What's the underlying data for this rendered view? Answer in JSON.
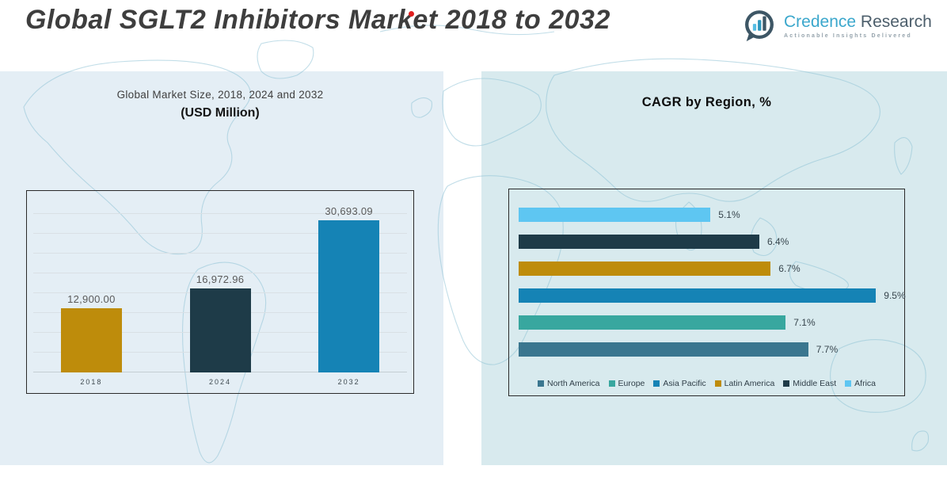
{
  "header": {
    "title": "Global SGLT2 Inhibitors Market 2018 to 2032",
    "logo": {
      "brand_primary": "Credence",
      "brand_secondary": "Research",
      "tagline": "Actionable Insights Delivered"
    }
  },
  "colors": {
    "accent_red": "#e01f1f",
    "brand_blue": "#3ba7cc",
    "brand_slate": "#4c5e6b",
    "panel_left_bg": "#e4eef5",
    "panel_right_bg": "#d8eaee"
  },
  "chart_data": [
    {
      "type": "bar",
      "title_line1": "Global Market Size, 2018, 2024 and 2032",
      "title_line2": "(USD Million)",
      "xlabel": "",
      "ylabel": "",
      "categories": [
        "2018",
        "2024",
        "2032"
      ],
      "values": [
        12900.0,
        16972.96,
        30693.09
      ],
      "value_labels": [
        "12,900.00",
        "16,972.96",
        "30,693.09"
      ],
      "bar_colors": [
        "#be8c0b",
        "#1e3b48",
        "#1583b5"
      ],
      "ylim": [
        0,
        32000
      ],
      "grid_divisions": 8,
      "grid": true,
      "legend_position": "none"
    },
    {
      "type": "hbar",
      "title": "CAGR by Region, %",
      "xlabel": "",
      "ylabel": "",
      "xlim": [
        0,
        10
      ],
      "grid": false,
      "legend_position": "bottom",
      "bars": [
        {
          "region": "Africa",
          "value": 5.1,
          "label": "5.1%",
          "color": "#5ec6f2"
        },
        {
          "region": "Middle East",
          "value": 6.4,
          "label": "6.4%",
          "color": "#1e3b48"
        },
        {
          "region": "Latin America",
          "value": 6.7,
          "label": "6.7%",
          "color": "#be8c0b"
        },
        {
          "region": "Asia Pacific",
          "value": 9.5,
          "label": "9.5%",
          "color": "#1583b5"
        },
        {
          "region": "Europe",
          "value": 7.1,
          "label": "7.1%",
          "color": "#38a79f"
        },
        {
          "region": "North America",
          "value": 7.7,
          "label": "7.7%",
          "color": "#3a768f"
        }
      ],
      "legend": [
        {
          "label": "North America",
          "color": "#3a768f"
        },
        {
          "label": "Europe",
          "color": "#38a79f"
        },
        {
          "label": "Asia Pacific",
          "color": "#1583b5"
        },
        {
          "label": "Latin America",
          "color": "#be8c0b"
        },
        {
          "label": "Middle East",
          "color": "#1e3b48"
        },
        {
          "label": "Africa",
          "color": "#5ec6f2"
        }
      ]
    }
  ]
}
